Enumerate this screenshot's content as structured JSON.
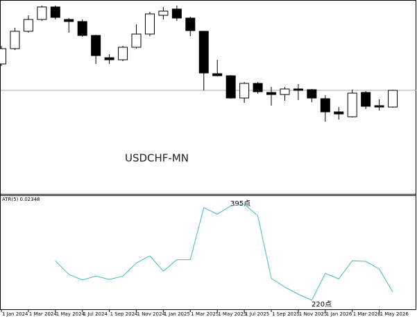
{
  "chart_data": [
    {
      "type": "candlestick",
      "title": "USDCHF-MN",
      "categories": [
        "1 Jan 2024",
        null,
        "1 Mar 2024",
        null,
        "1 May 2024",
        null,
        "1 Jul 2024",
        null,
        "1 Sep 2024",
        null,
        "1 Nov 2024",
        null,
        "1 Jan 2025",
        null,
        "1 Mar 2025",
        null,
        "1 May 2025",
        null,
        "1 Jul 2025",
        null,
        "1 Sep 2025",
        null,
        "1 Nov 2025",
        null,
        "1 Jan 2026",
        null,
        "1 Mar 2026",
        null,
        "1 May 2026",
        null
      ],
      "open": [
        0.838,
        0.86,
        0.885,
        0.902,
        0.92,
        0.902,
        0.899,
        0.879,
        0.847,
        0.844,
        0.862,
        0.881,
        0.908,
        0.917,
        0.904,
        0.885,
        0.824,
        0.821,
        0.789,
        0.81,
        0.797,
        0.794,
        0.802,
        0.801,
        0.788,
        0.769,
        0.762,
        0.797,
        0.778,
        0.776
      ],
      "high": [
        0.864,
        0.89,
        0.908,
        0.922,
        0.922,
        0.904,
        0.902,
        0.88,
        0.852,
        0.864,
        0.895,
        0.913,
        0.92,
        0.922,
        0.906,
        0.885,
        0.844,
        0.822,
        0.812,
        0.812,
        0.805,
        0.805,
        0.809,
        0.802,
        0.793,
        0.776,
        0.801,
        0.799,
        0.787,
        0.801
      ],
      "low": [
        0.835,
        0.858,
        0.883,
        0.9,
        0.902,
        0.883,
        0.877,
        0.838,
        0.838,
        0.842,
        0.86,
        0.878,
        0.902,
        0.9,
        0.878,
        0.8,
        0.82,
        0.788,
        0.782,
        0.795,
        0.778,
        0.785,
        0.786,
        0.783,
        0.755,
        0.758,
        0.761,
        0.773,
        0.771,
        0.775
      ],
      "close": [
        0.86,
        0.885,
        0.902,
        0.92,
        0.905,
        0.899,
        0.879,
        0.85,
        0.844,
        0.862,
        0.881,
        0.91,
        0.914,
        0.904,
        0.886,
        0.825,
        0.821,
        0.789,
        0.81,
        0.798,
        0.794,
        0.802,
        0.8,
        0.789,
        0.769,
        0.766,
        0.796,
        0.777,
        0.776,
        0.8
      ],
      "up_color": "#ffffff",
      "down_color": "#000000",
      "edge_color": "#000000",
      "hline": 0.8,
      "hline_color": "#a9a9b8",
      "ylim": [
        0.65,
        0.93
      ]
    },
    {
      "type": "line",
      "title": "ATR(5) 0.02348",
      "series": [
        {
          "name": "ATR(5)",
          "color": "#3cbcc4",
          "values": [
            null,
            null,
            null,
            null,
            292,
            267,
            257,
            264,
            258,
            264,
            288,
            301,
            273,
            294,
            294,
            389,
            377,
            392,
            395,
            374,
            260,
            244,
            231,
            220,
            269,
            259,
            292,
            291,
            277,
            234.8
          ]
        }
      ],
      "annotations": [
        "395点",
        "220点"
      ],
      "ylim": [
        203.6,
        410.1
      ]
    }
  ]
}
